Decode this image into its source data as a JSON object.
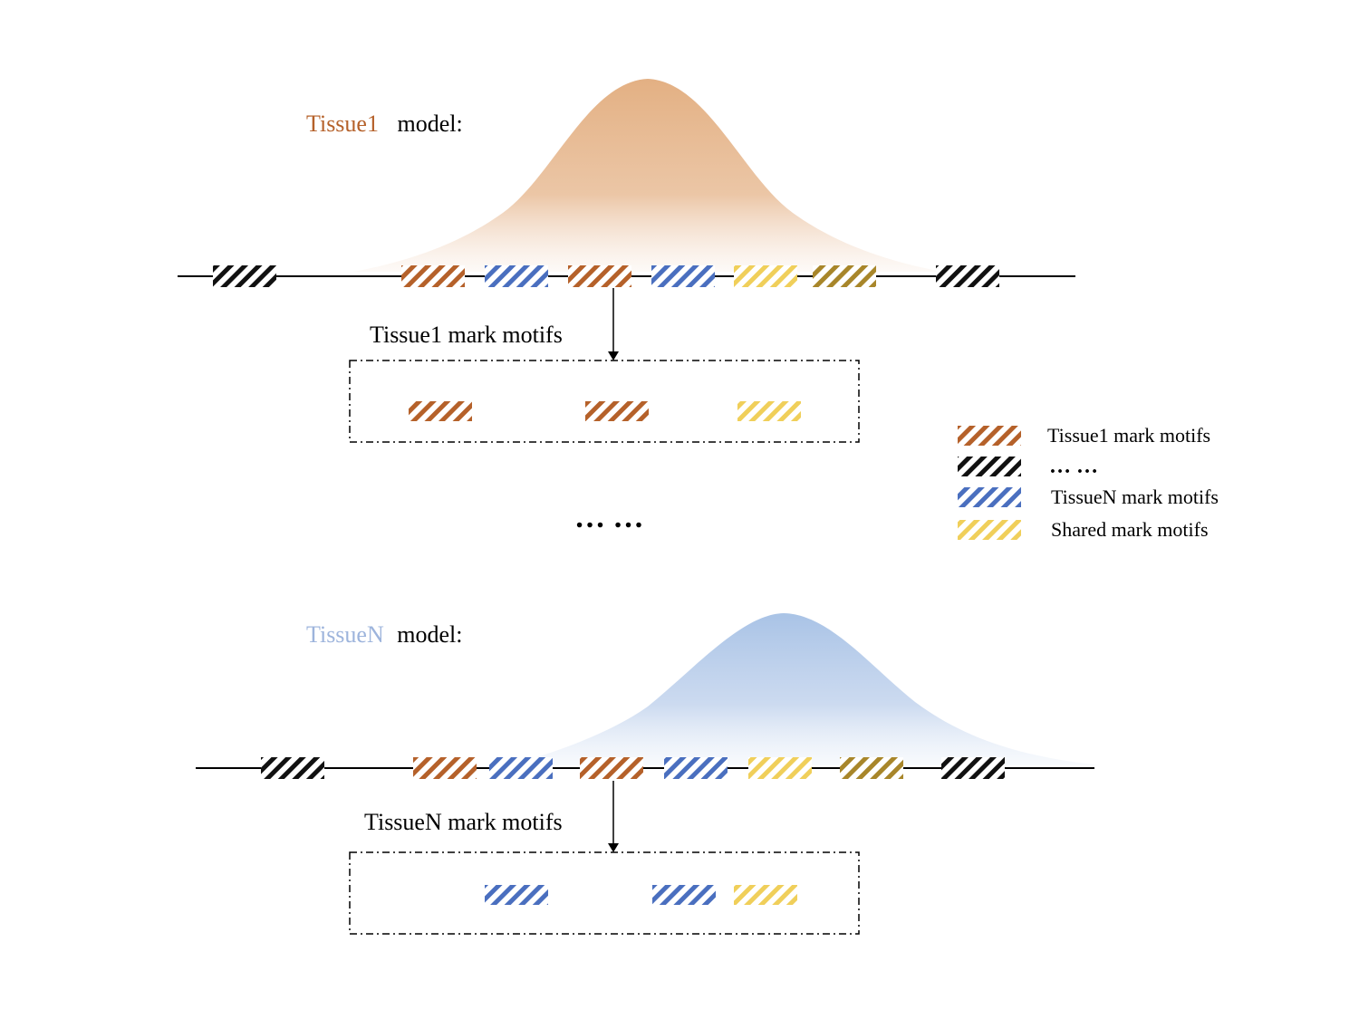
{
  "colors": {
    "tissue1": "#b5612a",
    "tissue1_peak": "#e3b083",
    "tissueN": "#9db4dc",
    "tissueN_peak": "#a9c3e6",
    "tissueN_motif": "#4a6fbf",
    "shared": "#f0cf5a",
    "other_shared": "#a8862a",
    "background": "#111111",
    "line": "#000000"
  },
  "top_model": {
    "label_name": "Tissue1",
    "label_suffix": "model:",
    "motifs": [
      "background",
      "tissue1",
      "tissueN",
      "tissue1",
      "tissueN",
      "shared",
      "other_shared",
      "background"
    ],
    "arrow_label": "Tissue1 mark motifs",
    "selected": [
      "tissue1",
      "tissue1",
      "shared"
    ]
  },
  "separator": "… …",
  "bottom_model": {
    "label_name": "TissueN",
    "label_suffix": "model:",
    "motifs": [
      "background",
      "tissue1",
      "tissueN",
      "tissue1",
      "tissueN",
      "shared",
      "other_shared",
      "background"
    ],
    "arrow_label": "TissueN mark motifs",
    "selected": [
      "tissueN",
      "tissueN",
      "shared"
    ]
  },
  "legend": {
    "items": [
      {
        "color": "tissue1",
        "label": "Tissue1 mark motifs"
      },
      {
        "color": "background",
        "label": "… …"
      },
      {
        "color": "tissueN",
        "label": "TissueN mark motifs"
      },
      {
        "color": "shared",
        "label": "Shared mark motifs"
      }
    ]
  }
}
